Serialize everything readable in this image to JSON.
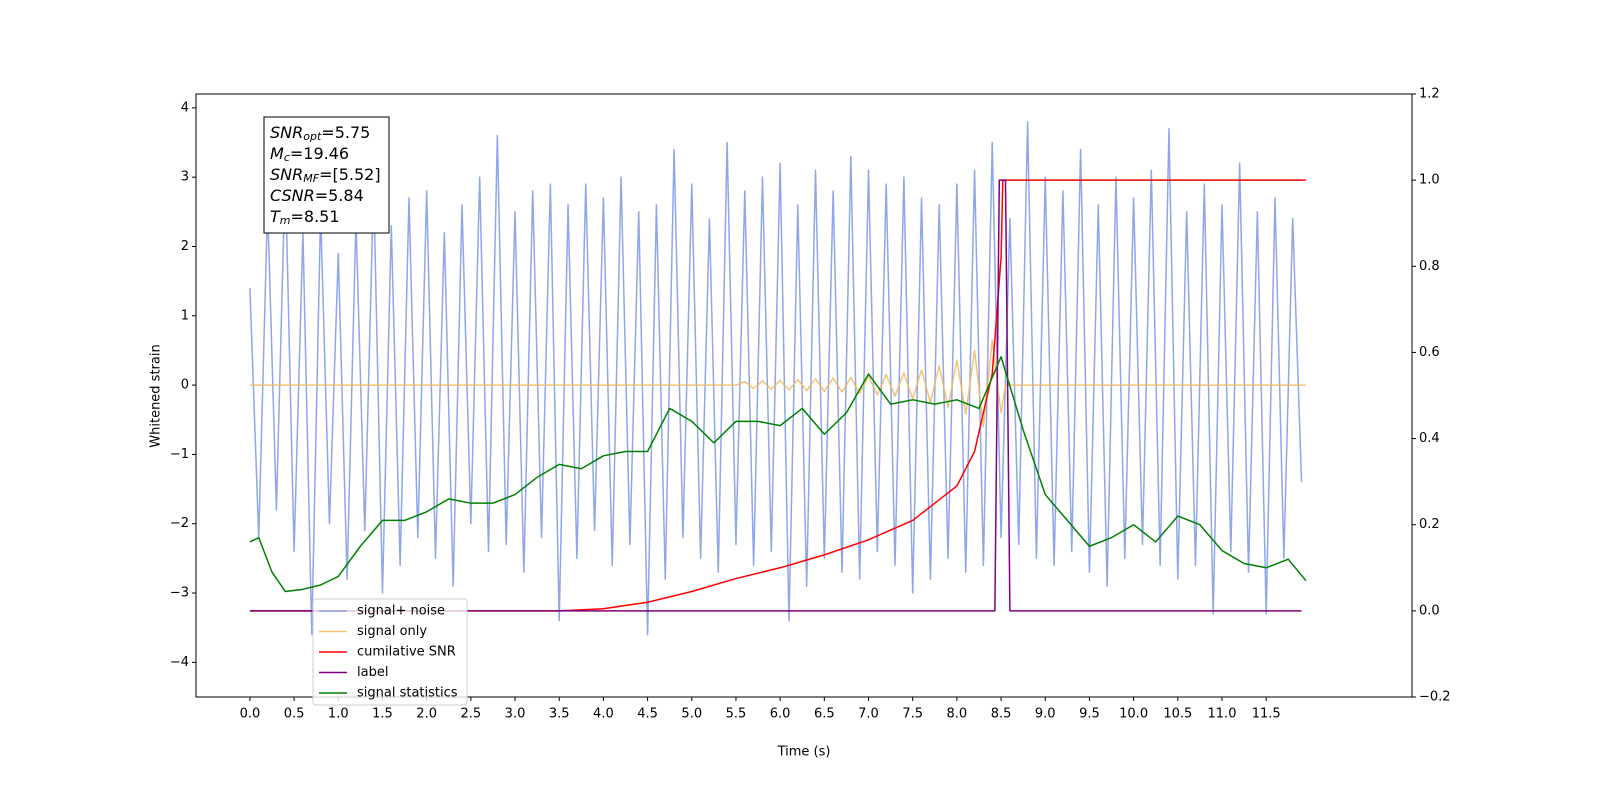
{
  "chart_data": {
    "type": "line",
    "xlabel": "Time (s)",
    "ylabel": "Whitened strain",
    "xlim": [
      -0.61,
      13.15
    ],
    "ylim": [
      -4.5,
      4.2
    ],
    "y2lim": [
      -0.2,
      1.2
    ],
    "xticks": [
      {
        "value": 0,
        "label": "0.0"
      },
      0.5,
      {
        "value": 1,
        "label": "1.0"
      },
      1.5,
      {
        "value": 2,
        "label": "2.0"
      },
      2.5,
      {
        "value": 3,
        "label": "3.0"
      },
      3.5,
      {
        "value": 4,
        "label": "4.0"
      },
      4.5,
      {
        "value": 5,
        "label": "5.0"
      },
      5.5,
      {
        "value": 6,
        "label": "6.0"
      },
      6.5,
      {
        "value": 7,
        "label": "7.0"
      },
      7.5,
      {
        "value": 8,
        "label": "8.0"
      },
      8.5,
      {
        "value": 9,
        "label": "9.0"
      },
      9.5,
      {
        "value": 10,
        "label": "10.0"
      },
      10.5,
      {
        "value": 11,
        "label": "11.0"
      },
      11.5
    ],
    "yticks": [
      {
        "value": -4,
        "label": "−4"
      },
      {
        "value": -3,
        "label": "−3"
      },
      {
        "value": -2,
        "label": "−2"
      },
      {
        "value": -1,
        "label": "−1"
      },
      0,
      1,
      2,
      3,
      4
    ],
    "y2ticks": [
      {
        "value": -0.2,
        "label": "−0.2"
      },
      {
        "value": 0,
        "label": "0.0"
      },
      0.2,
      0.4,
      0.6,
      0.8,
      {
        "value": 1,
        "label": "1.0"
      },
      1.2
    ],
    "annotations": [
      {
        "symbol": "SNR",
        "sub": "opt",
        "text": "=5.75"
      },
      {
        "symbol": "M",
        "sub": "c",
        "text": "=19.46"
      },
      {
        "symbol": "SNR",
        "sub": "MF",
        "text": "=[5.52]"
      },
      {
        "symbol": "CSNR",
        "sub": null,
        "text": "=5.84"
      },
      {
        "symbol": "T",
        "sub": "m",
        "text": "=8.51"
      }
    ],
    "series": [
      {
        "name": "signal+ noise",
        "color": "#7a96e8",
        "x": [
          0,
          0.1,
          0.2,
          0.3,
          0.4,
          0.5,
          0.6,
          0.7,
          0.8,
          0.9,
          1,
          1.1,
          1.2,
          1.3,
          1.4,
          1.5,
          1.6,
          1.7,
          1.8,
          1.9,
          2,
          2.1,
          2.2,
          2.3,
          2.4,
          2.5,
          2.6,
          2.7,
          2.8,
          2.9,
          3,
          3.1,
          3.2,
          3.3,
          3.4,
          3.5,
          3.6,
          3.7,
          3.8,
          3.9,
          4,
          4.1,
          4.2,
          4.3,
          4.4,
          4.5,
          4.6,
          4.7,
          4.8,
          4.9,
          5,
          5.1,
          5.2,
          5.3,
          5.4,
          5.5,
          5.6,
          5.7,
          5.8,
          5.9,
          6,
          6.1,
          6.2,
          6.3,
          6.4,
          6.5,
          6.6,
          6.7,
          6.8,
          6.9,
          7,
          7.1,
          7.2,
          7.3,
          7.4,
          7.5,
          7.6,
          7.7,
          7.8,
          7.9,
          8,
          8.1,
          8.2,
          8.3,
          8.4,
          8.5,
          8.6,
          8.7,
          8.8,
          8.9,
          9,
          9.1,
          9.2,
          9.3,
          9.4,
          9.5,
          9.6,
          9.7,
          9.8,
          9.9,
          10,
          10.1,
          10.2,
          10.3,
          10.4,
          10.5,
          10.6,
          10.7,
          10.8,
          10.9,
          11,
          11.1,
          11.2,
          11.3,
          11.4,
          11.5,
          11.6,
          11.7,
          11.8,
          11.9
        ],
        "values": [
          1.4,
          -2.2,
          2.6,
          -1.8,
          3.1,
          -2.4,
          2.2,
          -3.6,
          2.5,
          -2.0,
          1.9,
          -2.8,
          2.4,
          -2.1,
          2.9,
          -3.0,
          2.3,
          -2.6,
          2.7,
          -2.2,
          2.8,
          -2.5,
          2.2,
          -2.9,
          2.6,
          -2.0,
          3.0,
          -2.4,
          3.6,
          -2.3,
          2.5,
          -2.7,
          2.8,
          -2.2,
          2.9,
          -3.4,
          2.6,
          -2.5,
          2.9,
          -2.1,
          2.7,
          -2.6,
          3.0,
          -2.3,
          2.5,
          -3.6,
          2.6,
          -2.8,
          3.4,
          -2.2,
          2.9,
          -2.5,
          2.4,
          -2.7,
          3.5,
          -2.3,
          2.8,
          -2.6,
          3.0,
          -2.4,
          3.2,
          -3.4,
          2.6,
          -2.9,
          3.1,
          -2.5,
          2.8,
          -2.7,
          3.3,
          -2.8,
          3.1,
          -2.4,
          2.9,
          -2.6,
          3.0,
          -3.0,
          2.7,
          -2.8,
          2.6,
          -2.5,
          2.9,
          -2.7,
          3.1,
          -2.6,
          3.5,
          -2.2,
          2.4,
          -2.3,
          3.8,
          -2.5,
          3.0,
          -2.6,
          2.8,
          -2.4,
          3.4,
          -2.7,
          2.6,
          -2.9,
          3.0,
          -2.5,
          2.7,
          -2.3,
          3.1,
          -2.6,
          3.7,
          -2.8,
          2.5,
          -2.6,
          2.9,
          -3.3,
          2.6,
          -2.4,
          3.2,
          -2.7,
          2.5,
          -3.3,
          2.7,
          -2.5,
          2.4,
          -1.4
        ]
      },
      {
        "name": "signal only",
        "color": "#f5b85d",
        "x": [
          0,
          5.5,
          5.6,
          5.7,
          5.8,
          5.9,
          6,
          6.1,
          6.2,
          6.3,
          6.4,
          6.5,
          6.6,
          6.7,
          6.8,
          6.9,
          7,
          7.1,
          7.2,
          7.3,
          7.4,
          7.5,
          7.6,
          7.7,
          7.8,
          7.9,
          8,
          8.1,
          8.2,
          8.3,
          8.4,
          8.5,
          8.55,
          11.95
        ],
        "values": [
          0,
          0,
          0.05,
          -0.05,
          0.06,
          -0.06,
          0.07,
          -0.07,
          0.08,
          -0.08,
          0.09,
          -0.09,
          0.1,
          -0.1,
          0.11,
          -0.12,
          0.13,
          -0.14,
          0.15,
          -0.16,
          0.18,
          -0.2,
          0.22,
          -0.25,
          0.28,
          -0.32,
          0.36,
          -0.42,
          0.5,
          -0.6,
          0.65,
          -0.4,
          0,
          0
        ]
      },
      {
        "name": "cumilative SNR",
        "color": "#ff0000",
        "axis": "y2",
        "x": [
          0,
          3.5,
          4,
          4.5,
          5,
          5.5,
          6,
          6.5,
          7,
          7.5,
          8,
          8.2,
          8.4,
          8.5,
          8.52,
          11.95
        ],
        "values": [
          0,
          0,
          0.005,
          0.02,
          0.045,
          0.075,
          0.1,
          0.13,
          0.165,
          0.21,
          0.29,
          0.37,
          0.55,
          0.82,
          1,
          1
        ]
      },
      {
        "name": "label",
        "color": "#800080",
        "axis": "y2",
        "x": [
          0,
          8.43,
          8.48,
          8.55,
          8.6,
          11.9
        ],
        "values": [
          0,
          0,
          1,
          1,
          0,
          0
        ]
      },
      {
        "name": "signal statistics",
        "color": "#008000",
        "axis": "y2",
        "x": [
          0,
          0.1,
          0.25,
          0.4,
          0.6,
          0.8,
          1,
          1.25,
          1.5,
          1.75,
          2,
          2.25,
          2.5,
          2.75,
          3,
          3.25,
          3.5,
          3.75,
          4,
          4.25,
          4.5,
          4.75,
          5,
          5.25,
          5.5,
          5.75,
          6,
          6.25,
          6.5,
          6.75,
          7,
          7.25,
          7.5,
          7.75,
          8,
          8.25,
          8.5,
          8.75,
          9,
          9.25,
          9.5,
          9.75,
          10,
          10.25,
          10.5,
          10.75,
          11,
          11.25,
          11.5,
          11.75,
          11.95
        ],
        "values": [
          0.16,
          0.17,
          0.09,
          0.045,
          0.05,
          0.06,
          0.08,
          0.15,
          0.21,
          0.21,
          0.23,
          0.26,
          0.25,
          0.25,
          0.27,
          0.31,
          0.34,
          0.33,
          0.36,
          0.37,
          0.37,
          0.47,
          0.44,
          0.39,
          0.44,
          0.44,
          0.43,
          0.47,
          0.41,
          0.46,
          0.55,
          0.48,
          0.49,
          0.48,
          0.49,
          0.47,
          0.59,
          0.42,
          0.27,
          0.21,
          0.15,
          0.17,
          0.2,
          0.16,
          0.22,
          0.2,
          0.14,
          0.11,
          0.1,
          0.12,
          0.07
        ]
      }
    ]
  }
}
